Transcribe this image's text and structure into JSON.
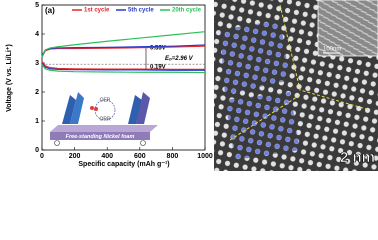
{
  "chart_data": {
    "type": "line",
    "panel_label": "(a)",
    "xlabel": "Specific capacity (mAh g⁻¹)",
    "ylabel": "Voltage (V vs. Li/Li⁺)",
    "x": [
      0,
      20,
      50,
      100,
      200,
      400,
      600,
      800,
      1000
    ],
    "series": [
      {
        "name": "1st cycle",
        "color": "#e8272b",
        "charge": [
          3.2,
          3.42,
          3.48,
          3.5,
          3.5,
          3.51,
          3.53,
          3.55,
          3.58
        ],
        "discharge": [
          3.05,
          2.9,
          2.84,
          2.81,
          2.8,
          2.79,
          2.79,
          2.78,
          2.78
        ]
      },
      {
        "name": "5th cycle",
        "color": "#2a3cc8",
        "charge": [
          3.25,
          3.45,
          3.5,
          3.52,
          3.53,
          3.54,
          3.56,
          3.58,
          3.62
        ],
        "discharge": [
          3.0,
          2.86,
          2.8,
          2.78,
          2.77,
          2.76,
          2.76,
          2.75,
          2.75
        ]
      },
      {
        "name": "20th cycle",
        "color": "#2ec05a",
        "charge": [
          3.2,
          3.45,
          3.52,
          3.56,
          3.63,
          3.75,
          3.86,
          3.97,
          4.08
        ],
        "discharge": [
          2.95,
          2.8,
          2.75,
          2.72,
          2.7,
          2.69,
          2.68,
          2.68,
          2.67
        ]
      }
    ],
    "reference_line": 2.96,
    "annotations": {
      "gap_charge": "0.53V",
      "gap_discharge": "0.19V",
      "eo_symbol": "E",
      "eo_sub": "o",
      "eo_rest": "=2.96 V"
    },
    "inset_labels": {
      "oer": "OER",
      "orr": "ORR",
      "substrate": "Free-standing Nickel foam"
    },
    "xlim": [
      0,
      1000
    ],
    "xticks": [
      0,
      200,
      400,
      600,
      800,
      1000
    ],
    "ylim": [
      0,
      5
    ],
    "yticks": [
      0,
      1,
      2,
      3,
      4,
      5
    ]
  },
  "image_labels": {
    "inset_scale": "100nm",
    "scale": "2 nm"
  }
}
